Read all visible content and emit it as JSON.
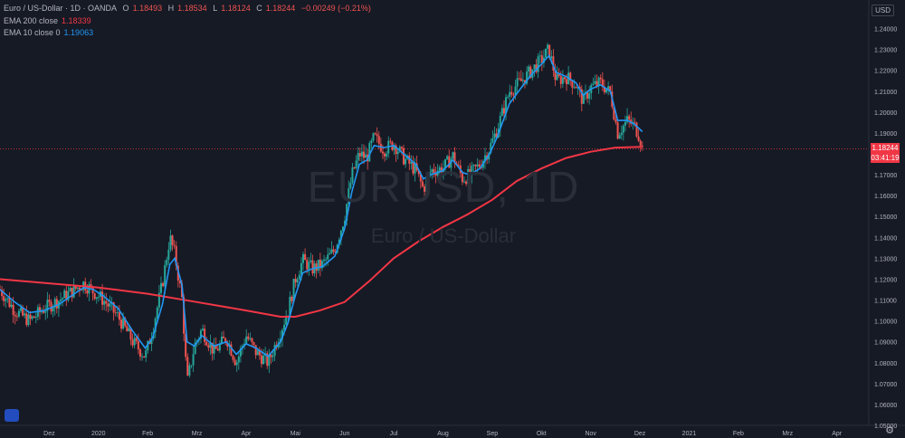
{
  "header": {
    "symbol": "Euro / US-Dollar · 1D · OANDA",
    "ohlc": {
      "open_label": "O",
      "open": "1.18493",
      "high_label": "H",
      "high": "1.18534",
      "low_label": "L",
      "low": "1.18124",
      "close_label": "C",
      "close": "1.18244",
      "change": "−0.00249 (−0.21%)"
    },
    "ema200": {
      "label": "EMA 200 close",
      "value": "1.18339"
    },
    "ema10": {
      "label": "EMA 10 close 0",
      "value": "1.19063"
    }
  },
  "watermark": {
    "symbol": "EURUSD, 1D",
    "name": "Euro / US-Dollar"
  },
  "currency": "USD",
  "price_tag": {
    "price": "1.18244",
    "countdown": "03:41:19"
  },
  "colors": {
    "background": "#161a25",
    "up": "#26a69a",
    "down": "#ef5350",
    "ema10": "#2196f3",
    "ema200": "#f23645",
    "axis_text": "#b2b5be"
  },
  "chart_data": {
    "type": "candlestick",
    "title": "Euro / US-Dollar",
    "ylim": [
      1.05,
      1.245
    ],
    "y_ticks": [
      "1.05000",
      "1.06000",
      "1.07000",
      "1.08000",
      "1.09000",
      "1.10000",
      "1.11000",
      "1.12000",
      "1.13000",
      "1.14000",
      "1.15000",
      "1.16000",
      "1.17000",
      "1.18000",
      "1.19000",
      "1.20000",
      "1.21000",
      "1.22000",
      "1.23000",
      "1.24000"
    ],
    "x_ticks": [
      "Dez",
      "2020",
      "Feb",
      "Mrz",
      "Apr",
      "Mai",
      "Jun",
      "Jul",
      "Aug",
      "Sep",
      "Okt",
      "Nov",
      "Dez",
      "2021",
      "Feb",
      "Mrz",
      "Apr"
    ],
    "x_tick_month_index": [
      0,
      1,
      2,
      3,
      4,
      5,
      6,
      7,
      8,
      9,
      10,
      11,
      12,
      13,
      14,
      15,
      16
    ],
    "x_range_months": [
      -1.0,
      16.65
    ],
    "price_path": [
      [
        -1.0,
        1.115
      ],
      [
        -0.7,
        1.105
      ],
      [
        -0.4,
        1.1
      ],
      [
        -0.1,
        1.106
      ],
      [
        0.2,
        1.11
      ],
      [
        0.45,
        1.114
      ],
      [
        0.7,
        1.118
      ],
      [
        0.9,
        1.114
      ],
      [
        1.1,
        1.11
      ],
      [
        1.4,
        1.102
      ],
      [
        1.7,
        1.09
      ],
      [
        1.95,
        1.083
      ],
      [
        2.1,
        1.096
      ],
      [
        2.3,
        1.118
      ],
      [
        2.45,
        1.14
      ],
      [
        2.55,
        1.132
      ],
      [
        2.7,
        1.11
      ],
      [
        2.8,
        1.07
      ],
      [
        2.95,
        1.088
      ],
      [
        3.1,
        1.096
      ],
      [
        3.35,
        1.085
      ],
      [
        3.6,
        1.092
      ],
      [
        3.8,
        1.08
      ],
      [
        4.0,
        1.093
      ],
      [
        4.2,
        1.085
      ],
      [
        4.45,
        1.08
      ],
      [
        4.7,
        1.095
      ],
      [
        4.85,
        1.105
      ],
      [
        5.0,
        1.12
      ],
      [
        5.15,
        1.129
      ],
      [
        5.35,
        1.125
      ],
      [
        5.55,
        1.127
      ],
      [
        5.8,
        1.134
      ],
      [
        6.0,
        1.15
      ],
      [
        6.15,
        1.17
      ],
      [
        6.3,
        1.18
      ],
      [
        6.45,
        1.178
      ],
      [
        6.6,
        1.188
      ],
      [
        6.8,
        1.182
      ],
      [
        7.0,
        1.185
      ],
      [
        7.2,
        1.178
      ],
      [
        7.45,
        1.172
      ],
      [
        7.6,
        1.163
      ],
      [
        7.75,
        1.172
      ],
      [
        8.0,
        1.173
      ],
      [
        8.2,
        1.179
      ],
      [
        8.4,
        1.168
      ],
      [
        8.55,
        1.17
      ],
      [
        8.75,
        1.175
      ],
      [
        8.95,
        1.183
      ],
      [
        9.1,
        1.192
      ],
      [
        9.35,
        1.21
      ],
      [
        9.6,
        1.215
      ],
      [
        9.8,
        1.22
      ],
      [
        10.0,
        1.225
      ],
      [
        10.15,
        1.23
      ],
      [
        10.3,
        1.215
      ],
      [
        10.5,
        1.217
      ],
      [
        10.7,
        1.213
      ],
      [
        10.85,
        1.205
      ],
      [
        11.0,
        1.212
      ],
      [
        11.2,
        1.214
      ],
      [
        11.4,
        1.209
      ],
      [
        11.55,
        1.19
      ],
      [
        11.75,
        1.196
      ],
      [
        11.9,
        1.193
      ],
      [
        12.0,
        1.188
      ],
      [
        12.05,
        1.1824
      ]
    ],
    "series": [
      {
        "name": "EMA 10 close 0",
        "color": "#2196f3",
        "values": [
          [
            -1.0,
            1.115
          ],
          [
            -0.7,
            1.109
          ],
          [
            -0.4,
            1.104
          ],
          [
            -0.1,
            1.105
          ],
          [
            0.2,
            1.108
          ],
          [
            0.45,
            1.112
          ],
          [
            0.7,
            1.116
          ],
          [
            0.9,
            1.115
          ],
          [
            1.1,
            1.112
          ],
          [
            1.4,
            1.106
          ],
          [
            1.7,
            1.095
          ],
          [
            1.95,
            1.087
          ],
          [
            2.1,
            1.092
          ],
          [
            2.3,
            1.108
          ],
          [
            2.45,
            1.127
          ],
          [
            2.55,
            1.13
          ],
          [
            2.7,
            1.117
          ],
          [
            2.8,
            1.09
          ],
          [
            2.95,
            1.088
          ],
          [
            3.1,
            1.093
          ],
          [
            3.35,
            1.088
          ],
          [
            3.6,
            1.09
          ],
          [
            3.8,
            1.084
          ],
          [
            4.0,
            1.089
          ],
          [
            4.2,
            1.087
          ],
          [
            4.45,
            1.083
          ],
          [
            4.7,
            1.09
          ],
          [
            4.85,
            1.099
          ],
          [
            5.0,
            1.112
          ],
          [
            5.15,
            1.123
          ],
          [
            5.35,
            1.125
          ],
          [
            5.55,
            1.126
          ],
          [
            5.8,
            1.131
          ],
          [
            6.0,
            1.144
          ],
          [
            6.15,
            1.162
          ],
          [
            6.3,
            1.175
          ],
          [
            6.45,
            1.177
          ],
          [
            6.6,
            1.184
          ],
          [
            6.8,
            1.183
          ],
          [
            7.0,
            1.184
          ],
          [
            7.2,
            1.18
          ],
          [
            7.45,
            1.175
          ],
          [
            7.6,
            1.168
          ],
          [
            7.75,
            1.17
          ],
          [
            8.0,
            1.172
          ],
          [
            8.2,
            1.177
          ],
          [
            8.4,
            1.171
          ],
          [
            8.55,
            1.17
          ],
          [
            8.75,
            1.173
          ],
          [
            8.95,
            1.18
          ],
          [
            9.1,
            1.188
          ],
          [
            9.35,
            1.204
          ],
          [
            9.6,
            1.212
          ],
          [
            9.8,
            1.218
          ],
          [
            10.0,
            1.223
          ],
          [
            10.15,
            1.227
          ],
          [
            10.3,
            1.219
          ],
          [
            10.5,
            1.217
          ],
          [
            10.7,
            1.214
          ],
          [
            10.85,
            1.208
          ],
          [
            11.0,
            1.211
          ],
          [
            11.2,
            1.213
          ],
          [
            11.4,
            1.21
          ],
          [
            11.55,
            1.196
          ],
          [
            11.75,
            1.196
          ],
          [
            11.9,
            1.194
          ],
          [
            12.05,
            1.1906
          ]
        ]
      },
      {
        "name": "EMA 200 close",
        "color": "#f23645",
        "values": [
          [
            -1.0,
            1.12
          ],
          [
            0.0,
            1.118
          ],
          [
            1.0,
            1.116
          ],
          [
            2.0,
            1.113
          ],
          [
            3.0,
            1.109
          ],
          [
            4.0,
            1.105
          ],
          [
            4.7,
            1.102
          ],
          [
            5.0,
            1.102
          ],
          [
            5.5,
            1.105
          ],
          [
            6.0,
            1.109
          ],
          [
            6.5,
            1.119
          ],
          [
            7.0,
            1.13
          ],
          [
            7.5,
            1.138
          ],
          [
            8.0,
            1.145
          ],
          [
            8.5,
            1.151
          ],
          [
            9.0,
            1.158
          ],
          [
            9.5,
            1.167
          ],
          [
            10.0,
            1.173
          ],
          [
            10.5,
            1.178
          ],
          [
            11.0,
            1.181
          ],
          [
            11.5,
            1.183
          ],
          [
            12.05,
            1.1834
          ]
        ]
      }
    ],
    "last_price": 1.18244,
    "grid": false,
    "legend": "top-left"
  }
}
